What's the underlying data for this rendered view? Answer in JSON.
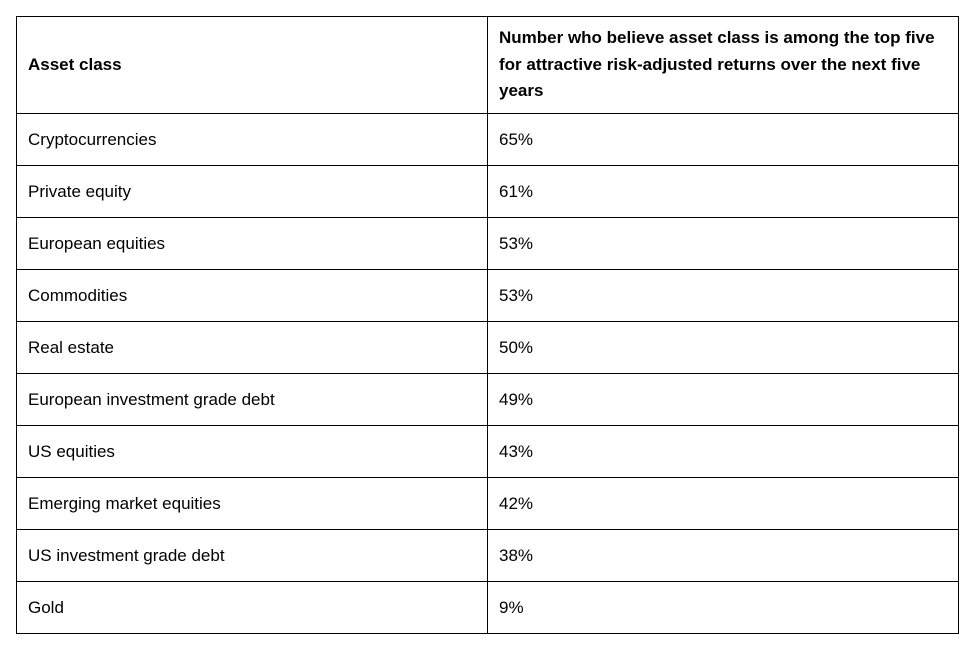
{
  "chart_data": {
    "type": "table",
    "columns": [
      "Asset class",
      "Number who believe asset class is among the top five for attractive risk-adjusted returns over the next five years"
    ],
    "rows": [
      [
        "Cryptocurrencies",
        "65%"
      ],
      [
        "Private equity",
        "61%"
      ],
      [
        "European equities",
        "53%"
      ],
      [
        "Commodities",
        "53%"
      ],
      [
        "Real estate",
        "50%"
      ],
      [
        "European investment grade debt",
        "49%"
      ],
      [
        "US equities",
        "43%"
      ],
      [
        "Emerging market equities",
        "42%"
      ],
      [
        "US investment grade debt",
        "38%"
      ],
      [
        "Gold",
        "9%"
      ]
    ]
  }
}
